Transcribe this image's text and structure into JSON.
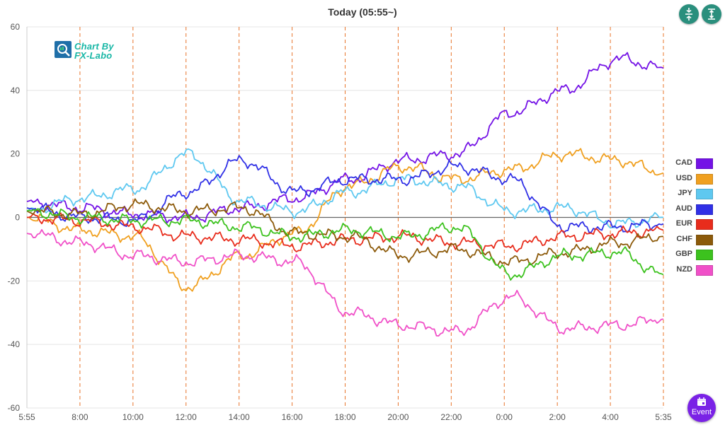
{
  "header": {
    "title": "Today  (05:55~)"
  },
  "toolbar": {
    "fit_icon": "compress-vertical-icon",
    "expand_icon": "expand-vertical-icon"
  },
  "logo": {
    "line1": "Chart By",
    "line2": "FX-Labo"
  },
  "event_button": {
    "label": "Event",
    "icon": "calendar-icon",
    "color": "#7a22e6"
  },
  "chart_data": {
    "type": "line",
    "title": "Today  (05:55~)",
    "xlabel": "",
    "ylabel": "",
    "ylim": [
      -60,
      60
    ],
    "yticks": [
      -60,
      -40,
      -20,
      0,
      20,
      40,
      60
    ],
    "x_tick_labels": [
      "5:55",
      "8:00",
      "10:00",
      "12:00",
      "14:00",
      "16:00",
      "18:00",
      "20:00",
      "22:00",
      "0:00",
      "2:00",
      "4:00",
      "5:35"
    ],
    "grid": true,
    "legend_position": "right",
    "x": [
      0,
      2,
      4,
      6,
      8,
      10,
      12,
      14,
      16,
      18,
      20,
      22,
      23.67
    ],
    "series": [
      {
        "name": "CAD",
        "color": "#7412e6",
        "values": [
          5,
          3,
          1,
          0,
          3,
          6,
          12,
          18,
          20,
          33,
          40,
          50,
          47
        ]
      },
      {
        "name": "USD",
        "color": "#f0a020",
        "values": [
          0,
          -4,
          -6,
          -22,
          -12,
          -5,
          10,
          16,
          12,
          15,
          20,
          18,
          14
        ]
      },
      {
        "name": "JPY",
        "color": "#5ec8f0",
        "values": [
          2,
          6,
          9,
          20,
          5,
          2,
          8,
          12,
          10,
          2,
          3,
          -2,
          0
        ]
      },
      {
        "name": "AUD",
        "color": "#3030e6",
        "values": [
          3,
          0,
          -1,
          8,
          18,
          8,
          12,
          12,
          16,
          12,
          -3,
          -3,
          -2
        ]
      },
      {
        "name": "EUR",
        "color": "#e82c1c",
        "values": [
          0,
          -1,
          -3,
          -6,
          -7,
          -9,
          -7,
          -6,
          -8,
          -9,
          -6,
          -5,
          -4
        ]
      },
      {
        "name": "CHF",
        "color": "#8c5a0a",
        "values": [
          2,
          1,
          4,
          2,
          3,
          -5,
          -6,
          -12,
          -10,
          -14,
          -11,
          -8,
          -6
        ]
      },
      {
        "name": "GBP",
        "color": "#3cc21e",
        "values": [
          2,
          0,
          -1,
          -1,
          -3,
          -6,
          -4,
          -6,
          -3,
          -18,
          -12,
          -11,
          -18
        ]
      },
      {
        "name": "NZD",
        "color": "#f050c8",
        "values": [
          -5,
          -8,
          -12,
          -14,
          -12,
          -14,
          -30,
          -34,
          -36,
          -25,
          -35,
          -34,
          -32
        ]
      }
    ]
  }
}
